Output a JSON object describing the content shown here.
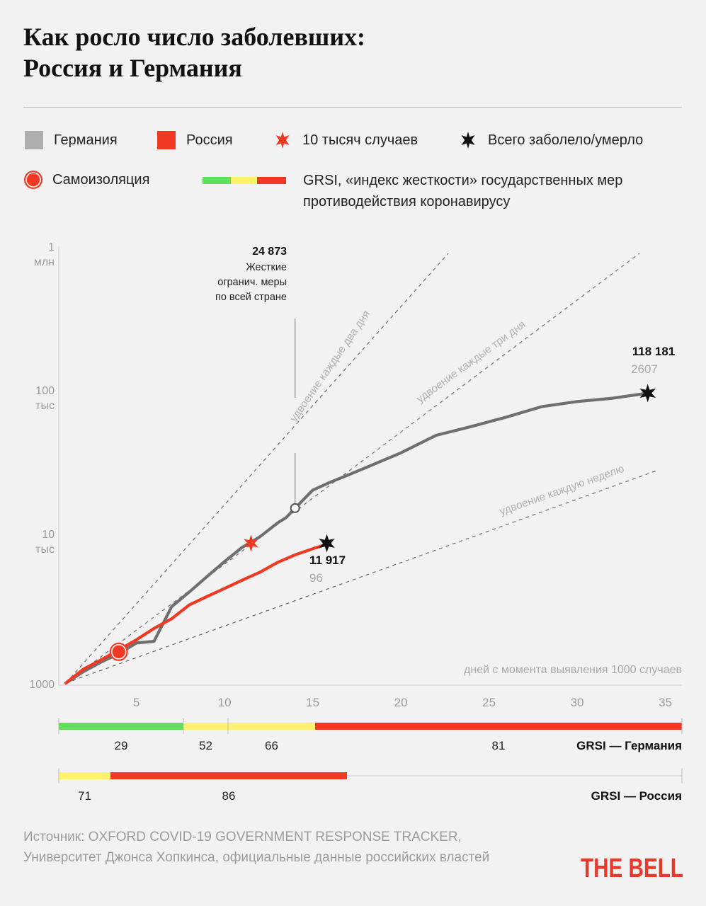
{
  "title_line1": "Как росло число заболевших:",
  "title_line2": "Россия и Германия",
  "legend": {
    "germany": "Германия",
    "russia": "Россия",
    "ten_thousand": "10 тысяч случаев",
    "total": "Всего заболело/умерло",
    "self_isolation": "Самоизоляция",
    "grsi": "GRSI, «индекс жесткости» государственных мер противодействия коронавирусу"
  },
  "colors": {
    "germany": "#6f6f6f",
    "russia": "#f03822",
    "green": "#5fe05a",
    "yellow": "#fff36b",
    "red": "#f03822"
  },
  "source": "Источник: OXFORD COVID-19 GOVERNMENT RESPONSE TRACKER, Университет Джонса Хопкинса, официальные данные российских властей",
  "logo": "THE BELL",
  "chart_data": {
    "type": "line",
    "y_scale": "log",
    "ylim": [
      1000,
      1000000
    ],
    "xlim": [
      1,
      36
    ],
    "x_ticks": [
      5,
      10,
      15,
      20,
      25,
      30,
      35
    ],
    "y_ticks": [
      {
        "value": 1000,
        "line1": "1000",
        "line2": ""
      },
      {
        "value": 10000,
        "line1": "10",
        "line2": "тыс"
      },
      {
        "value": 100000,
        "line1": "100",
        "line2": "тыс"
      },
      {
        "value": 1000000,
        "line1": "1",
        "line2": "млн"
      }
    ],
    "xlabel": "дней с момента выявления 1000 случаев",
    "series": [
      {
        "name": "Германия",
        "x": [
          1,
          2,
          3,
          4,
          5,
          6,
          7,
          8,
          9,
          10,
          11,
          12,
          13,
          13.5,
          14,
          15,
          16,
          17,
          18,
          19,
          20,
          22,
          24,
          26,
          28,
          30,
          32,
          34
        ],
        "y": [
          1000,
          1200,
          1400,
          1600,
          1900,
          1950,
          3400,
          4300,
          5500,
          7000,
          8800,
          10400,
          13000,
          14200,
          16500,
          22000,
          25000,
          28000,
          31500,
          35500,
          40000,
          53000,
          61000,
          71000,
          84000,
          91000,
          96000,
          104000
        ]
      },
      {
        "name": "Россия",
        "x": [
          1,
          2,
          3,
          4,
          5,
          6,
          7,
          8,
          9,
          10,
          11,
          12,
          13,
          14,
          15,
          16
        ],
        "y": [
          1000,
          1250,
          1450,
          1700,
          2000,
          2400,
          2800,
          3500,
          4000,
          4550,
          5200,
          5900,
          6900,
          7800,
          8600,
          9400
        ]
      }
    ],
    "guides": [
      {
        "label": "удвоение каждые два дня",
        "doubling_days": 2,
        "x_end": 22
      },
      {
        "label": "удвоение каждые три дня",
        "doubling_days": 3,
        "x_end": 33
      },
      {
        "label": "удвоение каждую неделю",
        "doubling_days": 7,
        "x_end": 35
      }
    ],
    "annotations": {
      "self_isolation": {
        "x": 4,
        "y": 1650
      },
      "ten_thousand_russia": {
        "x": 11.5,
        "y": 9400
      },
      "lockdown": {
        "x": 14,
        "y": 16500,
        "value": "24 873",
        "lines": [
          "Жесткие",
          "огранич. меры",
          "по всей стране"
        ]
      },
      "germany_total": {
        "x": 34,
        "y": 104000,
        "cases": "118 181",
        "deaths": "2607"
      },
      "russia_total": {
        "x": 15.8,
        "y": 9400,
        "cases": "11 917",
        "deaths": "96"
      }
    },
    "grsi": {
      "germany": {
        "label": "GRSI — Германия",
        "segments": [
          {
            "from": 1,
            "to": 8,
            "color": "green",
            "value": "29"
          },
          {
            "from": 8,
            "to": 10.5,
            "color": "yellow",
            "value": "52"
          },
          {
            "from": 10.5,
            "to": 15.4,
            "color": "yellow",
            "value": "66"
          },
          {
            "from": 15.4,
            "to": 36,
            "color": "red",
            "value": "81"
          }
        ],
        "ticks": [
          1,
          8,
          10.5,
          36
        ]
      },
      "russia": {
        "label": "GRSI — Россия",
        "segments": [
          {
            "from": 1,
            "to": 3.9,
            "color": "yellow",
            "value": "71"
          },
          {
            "from": 3.9,
            "to": 17.2,
            "color": "red",
            "value": "86"
          },
          {
            "from": 17.2,
            "to": 36,
            "color": "empty",
            "value": ""
          }
        ],
        "ticks": [
          1,
          36
        ]
      }
    }
  }
}
